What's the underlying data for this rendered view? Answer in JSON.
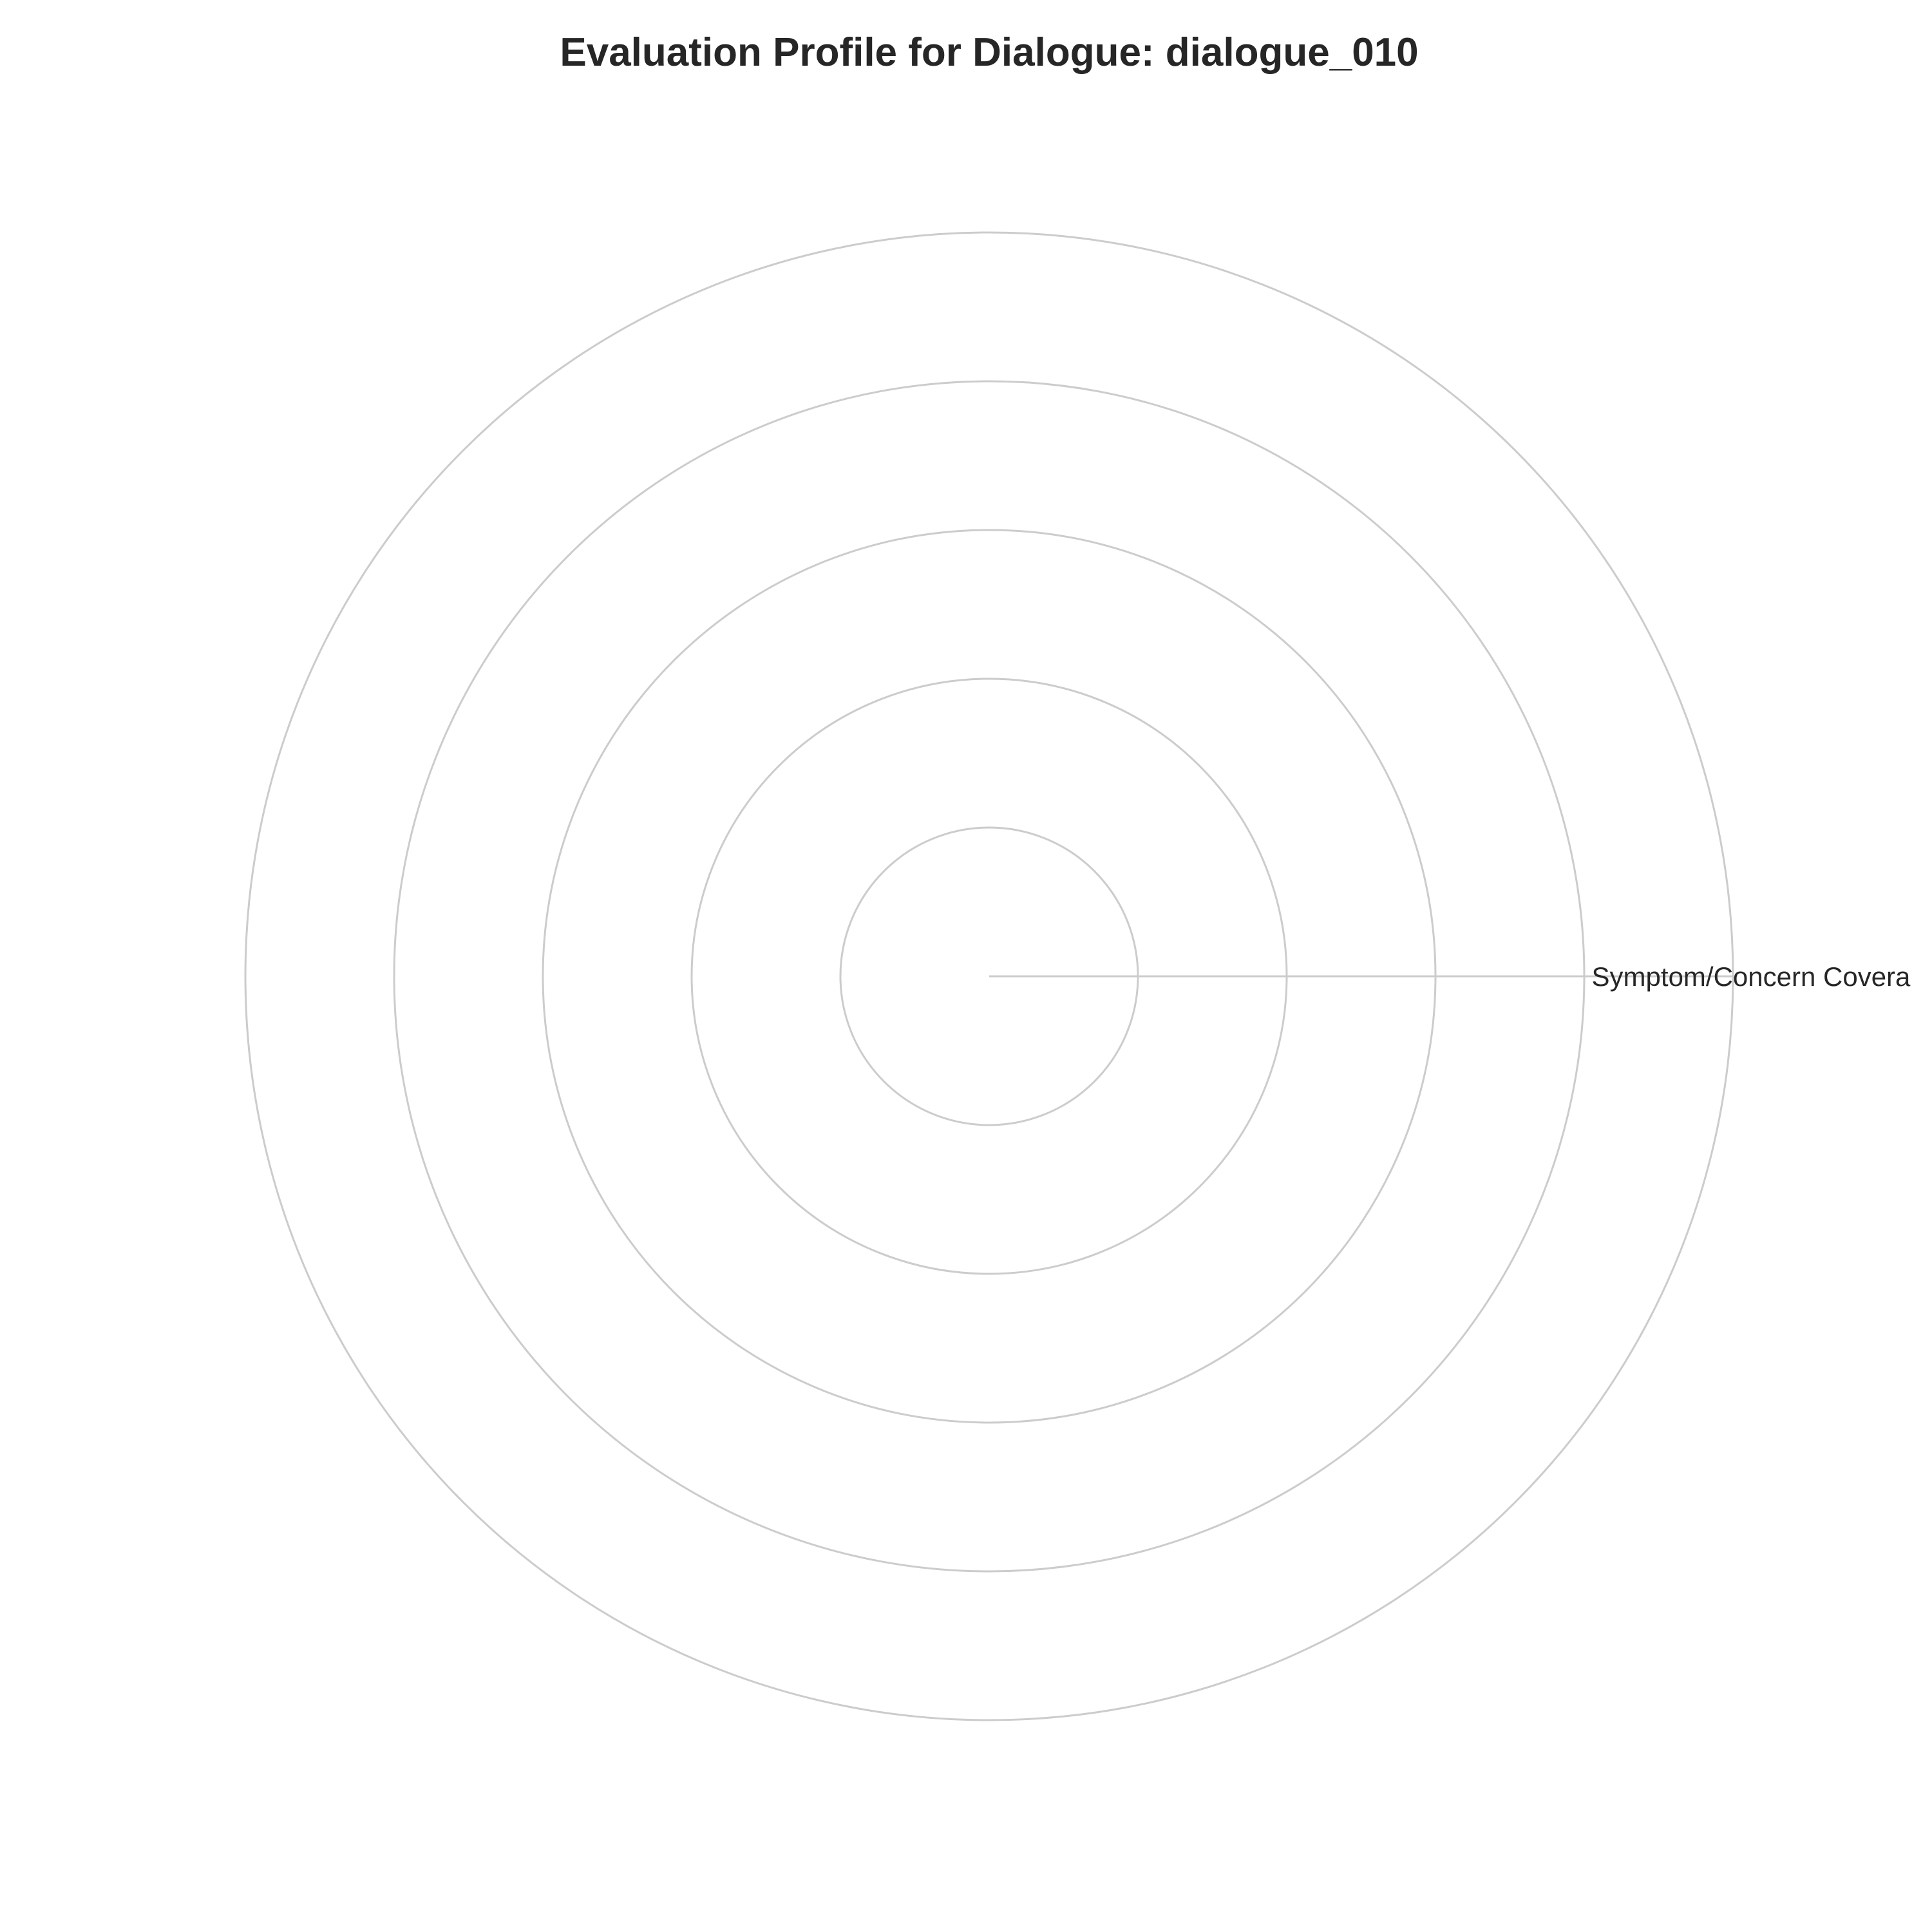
{
  "chart_data": {
    "type": "radar",
    "title": "Evaluation Profile for Dialogue: dialogue_010",
    "categories": [
      "Symptom/Concern Covera"
    ],
    "series": [],
    "rlim": [
      0,
      5
    ],
    "grid": true,
    "colors": {
      "grid": "#cccccc",
      "text": "#262626",
      "background": "#ffffff"
    }
  }
}
